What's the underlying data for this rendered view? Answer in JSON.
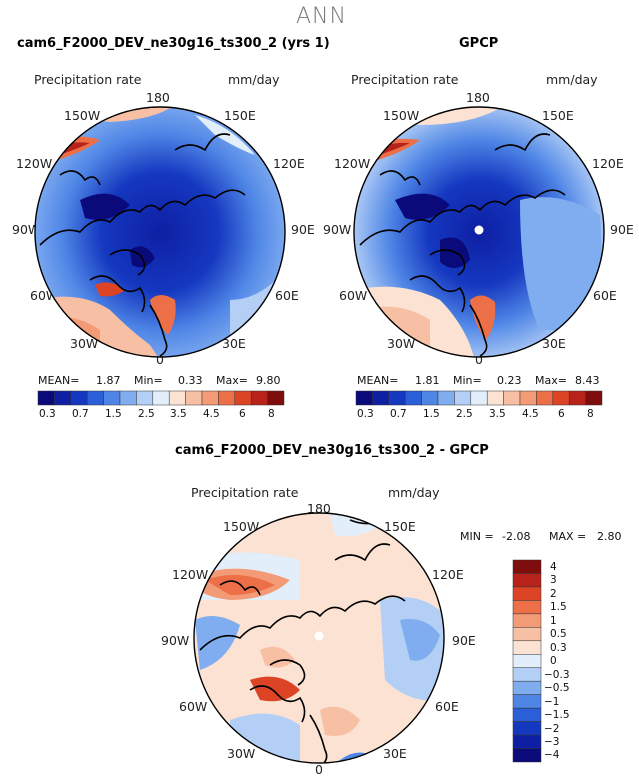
{
  "page_title": "ANN",
  "colors": {
    "land_outline": "#000000",
    "abs_scale": [
      "#0a0a7a",
      "#0e1fa3",
      "#1538c0",
      "#2a5fd7",
      "#4f86e6",
      "#80acf0",
      "#b4cff6",
      "#e3eefb",
      "#fbe2d3",
      "#f7c0a4",
      "#f29b76",
      "#ec6f48",
      "#dd4426",
      "#b7221a",
      "#7f0d0d"
    ],
    "diff_scale": [
      "#0a0a7a",
      "#0e1fa3",
      "#1538c0",
      "#2a5fd7",
      "#4f86e6",
      "#80acf0",
      "#b4cff6",
      "#e3eefb",
      "#fbe2d3",
      "#f7c0a4",
      "#f29b76",
      "#ec6f48",
      "#dd4426",
      "#b7221a",
      "#7f0d0d"
    ]
  },
  "panels": [
    {
      "id": "model",
      "title": "cam6_F2000_DEV_ne30g16_ts300_2 (yrs 1)",
      "variable": "Precipitation rate",
      "units": "mm/day",
      "lon_labels": {
        "n": "180",
        "nw": "150W",
        "ne": "150E",
        "wnw": "120W",
        "ene": "120E",
        "w": "90W",
        "e": "90E",
        "wsw": "60W",
        "ese": "60E",
        "sw": "30W",
        "se": "30E",
        "s": "0"
      },
      "stats": {
        "mean_label": "MEAN=",
        "mean": "1.87",
        "min_label": "Min=",
        "min": "0.33",
        "max_label": "Max=",
        "max": "9.80"
      },
      "colorbar_ticks": [
        "0.3",
        "0.7",
        "1.5",
        "2.5",
        "3.5",
        "4.5",
        "6",
        "8"
      ]
    },
    {
      "id": "obs",
      "title": "GPCP",
      "variable": "Precipitation rate",
      "units": "mm/day",
      "lon_labels": {
        "n": "180",
        "nw": "150W",
        "ne": "150E",
        "wnw": "120W",
        "ene": "120E",
        "w": "90W",
        "e": "90E",
        "wsw": "60W",
        "ese": "60E",
        "sw": "30W",
        "se": "30E",
        "s": "0"
      },
      "stats": {
        "mean_label": "MEAN=",
        "mean": "1.81",
        "min_label": "Min=",
        "min": "0.23",
        "max_label": "Max=",
        "max": "8.43"
      },
      "colorbar_ticks": [
        "0.3",
        "0.7",
        "1.5",
        "2.5",
        "3.5",
        "4.5",
        "6",
        "8"
      ]
    }
  ],
  "diff_panel": {
    "title": "cam6_F2000_DEV_ne30g16_ts300_2 - GPCP",
    "variable": "Precipitation rate",
    "units": "mm/day",
    "lon_labels": {
      "n": "180",
      "nw": "150W",
      "ne": "150E",
      "wnw": "120W",
      "ene": "120E",
      "w": "90W",
      "e": "90E",
      "wsw": "60W",
      "ese": "60E",
      "sw": "30W",
      "se": "30E",
      "s": "0"
    },
    "stats": {
      "min_label": "MIN =",
      "min": "-2.08",
      "max_label": "MAX =",
      "max": "2.80"
    },
    "colorbar_ticks": [
      "4",
      "3",
      "2",
      "1.5",
      "1",
      "0.5",
      "0.3",
      "0",
      "−0.3",
      "−0.5",
      "−1",
      "−1.5",
      "−2",
      "−3",
      "−4"
    ]
  }
}
